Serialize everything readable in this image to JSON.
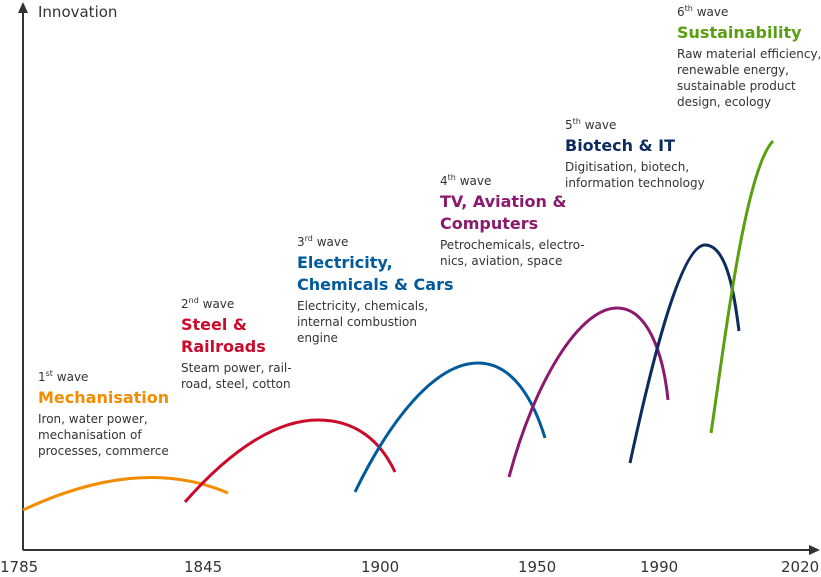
{
  "axis": {
    "y_label": "Innovation",
    "x_ticks": [
      "1785",
      "1845",
      "1900",
      "1950",
      "1990",
      "2020"
    ]
  },
  "colors": {
    "wave1": "#f28c00",
    "wave2": "#cc0a2a",
    "wave3": "#005a9c",
    "wave4": "#8b1a6e",
    "wave5": "#0d2b5e",
    "wave6": "#5a9e12",
    "axis": "#333333"
  },
  "waves": [
    {
      "num": "1",
      "sup": "st",
      "word": "wave",
      "title": "Mechanisation",
      "desc": [
        "Iron, water power,",
        "mechanisation of",
        "processes, commerce"
      ]
    },
    {
      "num": "2",
      "sup": "nd",
      "word": "wave",
      "title": [
        "Steel &",
        "Railroads"
      ],
      "desc": [
        "Steam power, rail-",
        "road, steel, cotton"
      ]
    },
    {
      "num": "3",
      "sup": "rd",
      "word": "wave",
      "title": [
        "Electricity,",
        "Chemicals & Cars"
      ],
      "desc": [
        "Electricity, chemicals,",
        "internal combustion",
        "engine"
      ]
    },
    {
      "num": "4",
      "sup": "th",
      "word": "wave",
      "title": [
        "TV, Aviation &",
        "Computers"
      ],
      "desc": [
        "Petrochemicals, electro-",
        "nics, aviation, space"
      ]
    },
    {
      "num": "5",
      "sup": "th",
      "word": "wave",
      "title": "Biotech & IT",
      "desc": [
        "Digitisation, biotech,",
        "information technology"
      ]
    },
    {
      "num": "6",
      "sup": "th",
      "word": "wave",
      "title": "Sustainability",
      "desc": [
        "Raw material efficiency,",
        "renewable energy,",
        "sustainable product",
        "design, ecology"
      ]
    }
  ]
}
